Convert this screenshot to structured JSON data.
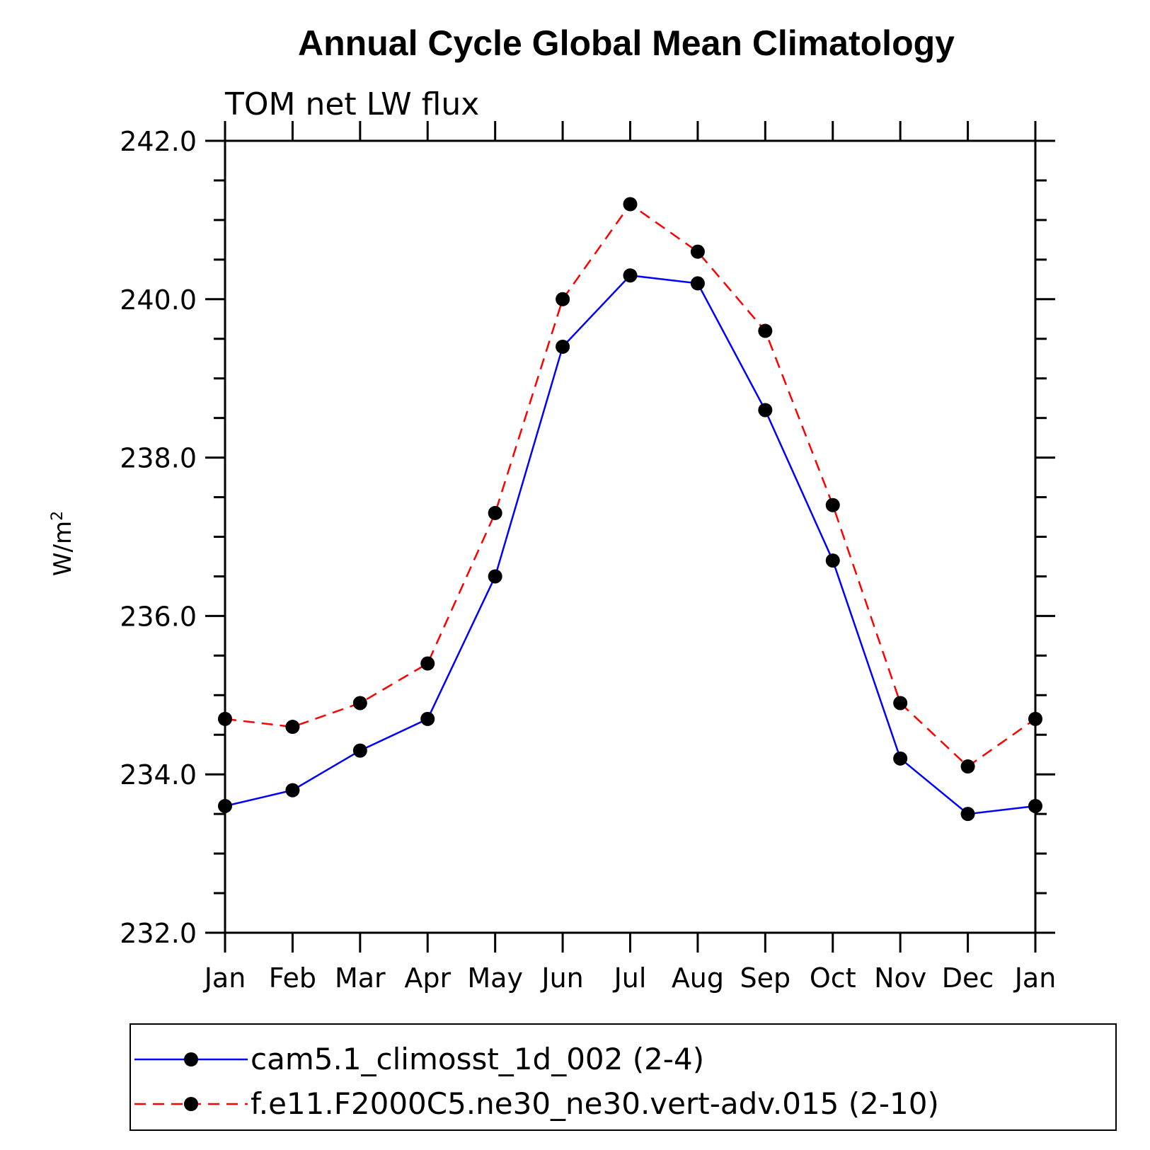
{
  "chart_data": {
    "type": "line",
    "title": "Annual Cycle Global Mean Climatology",
    "subtitle": "TOM net LW flux",
    "ylabel": "W/m",
    "ylabel_sup": "2",
    "xlabel": "",
    "categories": [
      "Jan",
      "Feb",
      "Mar",
      "Apr",
      "May",
      "Jun",
      "Jul",
      "Aug",
      "Sep",
      "Oct",
      "Nov",
      "Dec",
      "Jan"
    ],
    "ylim": [
      232.0,
      242.0
    ],
    "yticks": [
      "232.0",
      "234.0",
      "236.0",
      "238.0",
      "240.0",
      "242.0"
    ],
    "grid": false,
    "legend_position": "bottom",
    "series": [
      {
        "name": "cam5.1_climosst_1d_002 (2-4)",
        "color": "#0000ff",
        "dash": "solid",
        "values": [
          233.6,
          233.8,
          234.3,
          234.7,
          236.5,
          239.4,
          240.3,
          240.2,
          238.6,
          236.7,
          234.2,
          233.5,
          233.6
        ]
      },
      {
        "name": "f.e11.F2000C5.ne30_ne30.vert-adv.015 (2-10)",
        "color": "#ff0000",
        "dash": "dashed",
        "values": [
          234.7,
          234.6,
          234.9,
          235.4,
          237.3,
          240.0,
          241.2,
          240.6,
          239.6,
          237.4,
          234.9,
          234.1,
          234.7
        ]
      }
    ]
  }
}
